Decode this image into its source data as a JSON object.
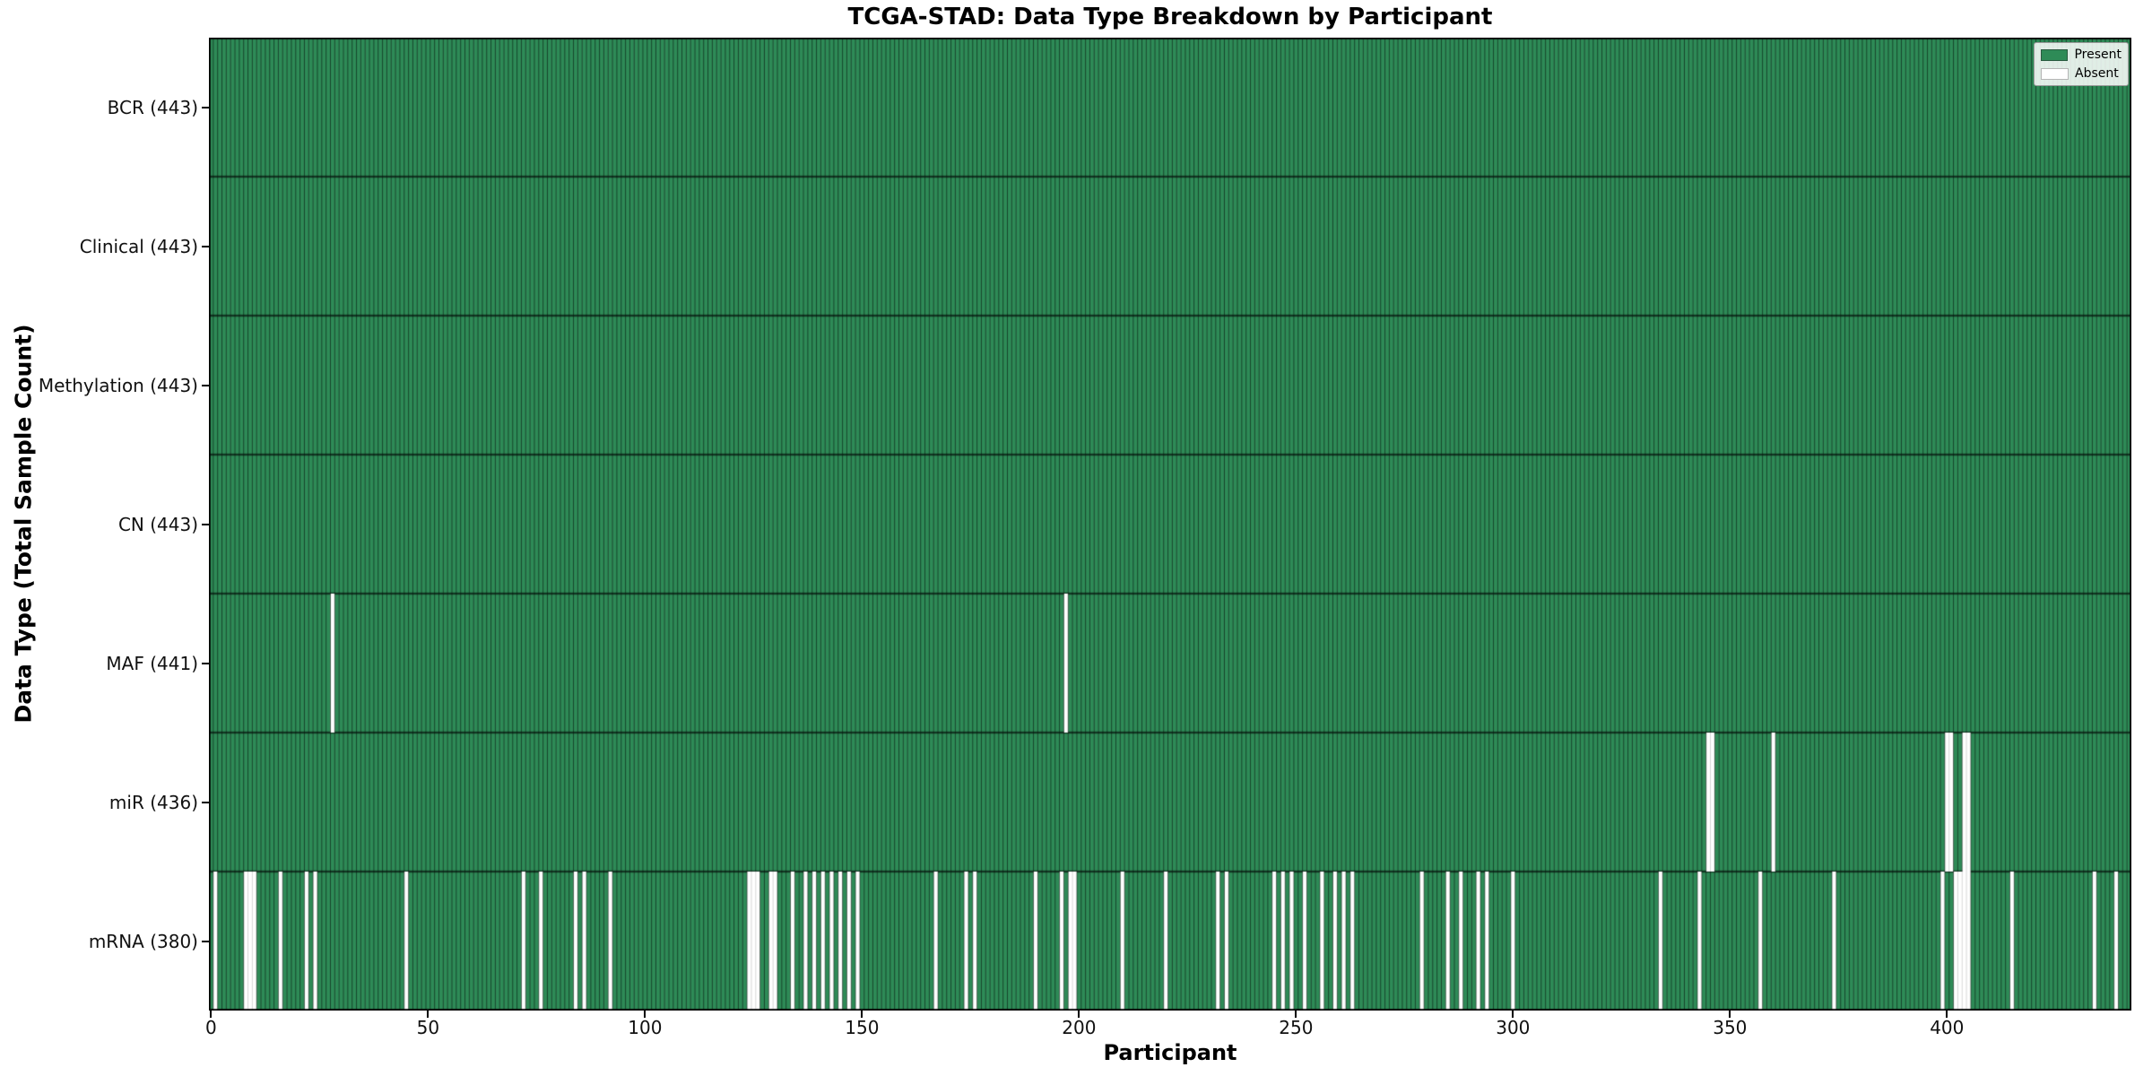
{
  "chart_data": {
    "type": "heatmap",
    "title": "TCGA-STAD: Data Type Breakdown by Participant",
    "xlabel": "Participant",
    "ylabel": "Data Type (Total Sample Count)",
    "n_participants": 443,
    "x_axis_range": [
      -0.5,
      442.5
    ],
    "x_ticks": [
      0,
      50,
      100,
      150,
      200,
      250,
      300,
      350,
      400
    ],
    "grid": false,
    "legend_position": "upper right",
    "legend": [
      {
        "label": "Present",
        "color": "#2e8b57"
      },
      {
        "label": "Absent",
        "color": "#ffffff"
      }
    ],
    "colors": {
      "present": "#2e8b57",
      "absent": "#ffffff",
      "present_edge": "rgba(0,0,0,0.5)",
      "absent_edge": "rgba(0,0,0,0.16)",
      "row_boundary": "rgba(0,0,0,0.6)",
      "spine": "#000000"
    },
    "rows": [
      {
        "data_type": "BCR",
        "label": "BCR (443)",
        "total": 443,
        "absent": []
      },
      {
        "data_type": "Clinical",
        "label": "Clinical (443)",
        "total": 443,
        "absent": []
      },
      {
        "data_type": "Methylation",
        "label": "Methylation (443)",
        "total": 443,
        "absent": []
      },
      {
        "data_type": "CN",
        "label": "CN (443)",
        "total": 443,
        "absent": []
      },
      {
        "data_type": "MAF",
        "label": "MAF (441)",
        "total": 441,
        "absent": [
          28,
          197
        ]
      },
      {
        "data_type": "miR",
        "label": "miR (436)",
        "total": 436,
        "absent": [
          345,
          346,
          360,
          400,
          401,
          404,
          405
        ]
      },
      {
        "data_type": "mRNA",
        "label": "mRNA (380)",
        "total": 380,
        "absent": [
          1,
          8,
          9,
          10,
          16,
          22,
          24,
          45,
          72,
          76,
          84,
          86,
          92,
          124,
          125,
          126,
          129,
          130,
          134,
          137,
          139,
          141,
          143,
          145,
          147,
          149,
          167,
          174,
          176,
          190,
          196,
          198,
          199,
          210,
          220,
          232,
          234,
          245,
          247,
          249,
          252,
          256,
          259,
          261,
          263,
          279,
          285,
          288,
          292,
          294,
          300,
          334,
          343,
          357,
          374,
          399,
          402,
          403,
          404,
          405,
          415,
          434,
          439
        ]
      }
    ]
  }
}
